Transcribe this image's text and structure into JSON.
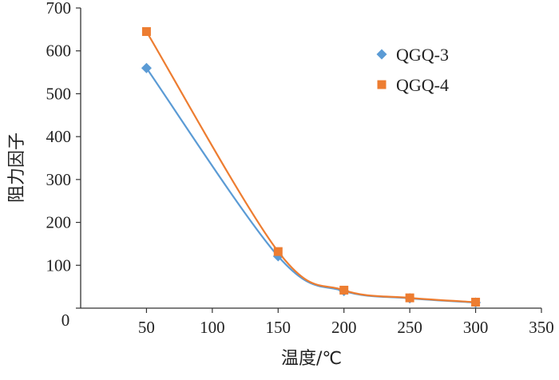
{
  "chart_data": {
    "type": "line",
    "title": "",
    "xlabel": "温度/℃",
    "ylabel": "阻力因子",
    "xlim": [
      0,
      350
    ],
    "ylim": [
      0,
      700
    ],
    "x_ticks": [
      50,
      100,
      150,
      200,
      250,
      300,
      350
    ],
    "y_ticks": [
      0,
      100,
      200,
      300,
      400,
      500,
      600,
      700
    ],
    "grid": false,
    "legend_position": "top-right",
    "series": [
      {
        "name": "QGQ-3",
        "marker": "diamond",
        "color": "#5b9bd5",
        "x": [
          50,
          150,
          200,
          250,
          300
        ],
        "y": [
          560,
          121,
          40,
          23,
          13
        ]
      },
      {
        "name": "QGQ-4",
        "marker": "square",
        "color": "#ed7d31",
        "x": [
          50,
          150,
          200,
          250,
          300
        ],
        "y": [
          645,
          132,
          42,
          24,
          14
        ]
      }
    ]
  }
}
